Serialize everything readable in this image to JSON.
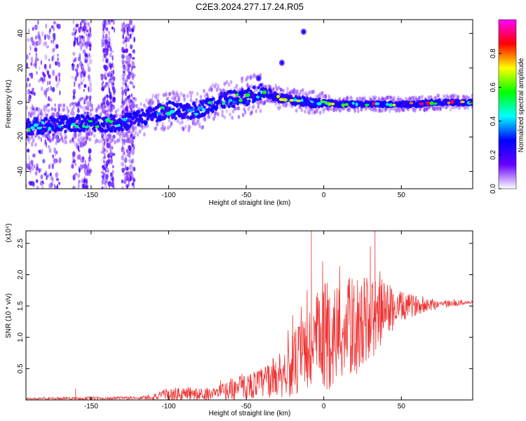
{
  "figure": {
    "title": "C2E3.2024.277.17.24.R05"
  },
  "chart_data": [
    {
      "type": "heatmap",
      "xlabel": "Height of straight line (km)",
      "ylabel": "Frequency (Hz)",
      "xlim": [
        -192,
        96
      ],
      "ylim": [
        -50,
        48
      ],
      "xticks": [
        -150,
        -100,
        -50,
        0,
        50
      ],
      "yticks": [
        -40,
        -20,
        0,
        20,
        40
      ],
      "colorbar": {
        "label": "Normalized spectral amplitude",
        "range": [
          0,
          1
        ],
        "ticks": [
          "0.0",
          "0.2",
          "0.4",
          "0.6",
          "0.8"
        ],
        "colors": [
          "#ffffff",
          "#6600ff",
          "#0000ff",
          "#00ffff",
          "#00ff00",
          "#ffff00",
          "#ff0000",
          "#ff00ff"
        ]
      },
      "ridge": {
        "x": [
          -192,
          -175,
          -160,
          -150,
          -140,
          -130,
          -120,
          -110,
          -100,
          -90,
          -80,
          -70,
          -60,
          -50,
          -45,
          -40,
          -35,
          -30,
          -25,
          -20,
          -15,
          -10,
          -5,
          0,
          10,
          20,
          30,
          40,
          50,
          60,
          70,
          80,
          90,
          96
        ],
        "y": [
          -14,
          -13,
          -12,
          -12,
          -12,
          -12,
          -9,
          -7,
          -4,
          -6,
          -4,
          0,
          2,
          3,
          5,
          6,
          5,
          3,
          2,
          1,
          1,
          0,
          0,
          0,
          -1,
          -1,
          -1,
          -1,
          -1,
          -1,
          0,
          0,
          0,
          0
        ]
      },
      "outliers": [
        {
          "x": -42,
          "y": 14
        },
        {
          "x": -27,
          "y": 23
        },
        {
          "x": -13,
          "y": 41
        }
      ],
      "scatter_bands_x": [
        [
          -192,
          -170
        ],
        [
          -162,
          -150
        ],
        [
          -143,
          -135
        ],
        [
          -130,
          -122
        ]
      ]
    },
    {
      "type": "line",
      "xlabel": "Height of straight line (km)",
      "ylabel": "SNR (10 * v/v)",
      "yscale_label": "(x10⁴)",
      "xlim": [
        -192,
        96
      ],
      "ylim": [
        0,
        2.7
      ],
      "xticks": [
        -150,
        -100,
        -50,
        0,
        50
      ],
      "yticks": [
        0.5,
        1.0,
        1.5,
        2.0,
        2.5
      ],
      "color": "#ee3333",
      "envelope": {
        "x": [
          -192,
          -150,
          -120,
          -100,
          -90,
          -80,
          -70,
          -60,
          -50,
          -40,
          -30,
          -20,
          -10,
          0,
          10,
          20,
          30,
          40,
          50,
          60,
          70,
          80,
          90,
          96
        ],
        "base": [
          0.02,
          0.02,
          0.03,
          0.06,
          0.08,
          0.07,
          0.1,
          0.15,
          0.2,
          0.25,
          0.35,
          0.5,
          0.7,
          0.9,
          1.0,
          1.1,
          1.2,
          1.4,
          1.45,
          1.5,
          1.52,
          1.53,
          1.55,
          1.55
        ],
        "amp": [
          0.01,
          0.03,
          0.02,
          0.1,
          0.14,
          0.1,
          0.1,
          0.18,
          0.2,
          0.25,
          0.35,
          0.5,
          0.8,
          0.9,
          0.85,
          0.8,
          0.7,
          0.45,
          0.25,
          0.15,
          0.1,
          0.06,
          0.04,
          0.03
        ]
      },
      "spikes": [
        {
          "x": -8,
          "y": 2.7
        },
        {
          "x": 33,
          "y": 2.7
        },
        {
          "x": 30,
          "y": 2.45
        },
        {
          "x": -20,
          "y": 1.35
        },
        {
          "x": -160,
          "y": 0.18
        }
      ]
    }
  ]
}
